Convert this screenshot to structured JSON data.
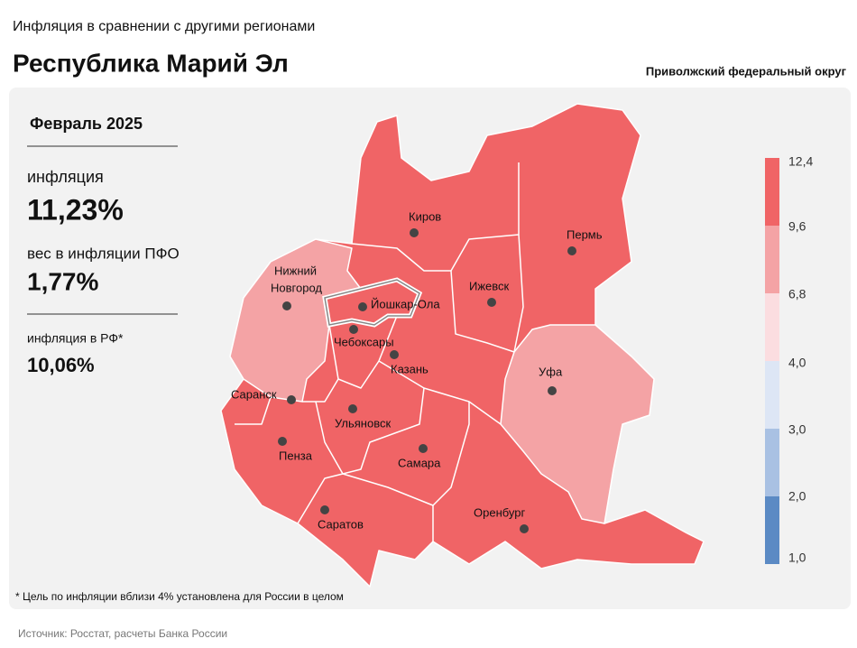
{
  "header": {
    "subtitle": "Инфляция в сравнении с другими регионами",
    "title": "Республика Марий Эл",
    "district": "Приволжский федеральный округ"
  },
  "stats": {
    "period": "Февраль 2025",
    "inflation_label": "инфляция",
    "inflation_value": "11,23%",
    "weight_label": "вес в инфляции ПФО",
    "weight_value": "1,77%",
    "rf_label": "инфляция в РФ*",
    "rf_value": "10,06%"
  },
  "cities": [
    "Киров",
    "Пермь",
    "Нижний Новгород",
    "Ижевск",
    "Йошкар-Ола",
    "Чебоксары",
    "Казань",
    "Уфа",
    "Саранск",
    "Ульяновск",
    "Пенза",
    "Самара",
    "Саратов",
    "Оренбург"
  ],
  "legend": {
    "labels": [
      "12,4",
      "9,6",
      "6,8",
      "4,0",
      "3,0",
      "2,0",
      "1,0"
    ]
  },
  "footnote": "* Цель по инфляции вблизи 4% установлена для России в целом",
  "source": "Источник: Росстат, расчеты Банка России"
}
